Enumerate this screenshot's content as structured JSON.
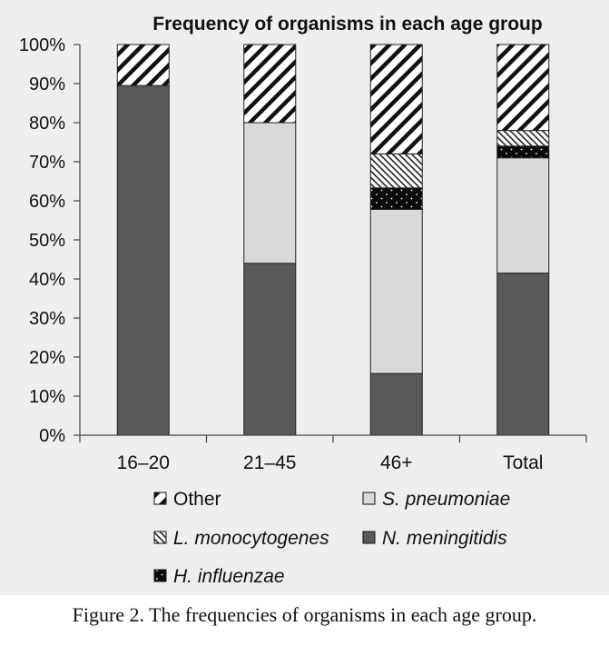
{
  "chart_data": {
    "type": "bar",
    "stacked": true,
    "title": "Frequency of organisms in each age group",
    "categories": [
      "16–20",
      "21–45",
      "46+",
      "Total"
    ],
    "y_ticks": [
      "0%",
      "10%",
      "20%",
      "30%",
      "40%",
      "50%",
      "60%",
      "70%",
      "80%",
      "90%",
      "100%"
    ],
    "ylim": [
      0,
      100
    ],
    "grid": false,
    "legend_position": "bottom",
    "series": [
      {
        "name": "N. meningitidis",
        "italic": true,
        "color": "#595959",
        "pattern": "solid",
        "values": [
          89.5,
          44,
          15.8,
          41.5
        ]
      },
      {
        "name": "S. pneumoniae",
        "italic": true,
        "color": "#d9d9d9",
        "pattern": "solid",
        "values": [
          0,
          36,
          42,
          29.5
        ]
      },
      {
        "name": "H. influenzae",
        "italic": true,
        "color": "#0a0a0a",
        "pattern": "dots",
        "values": [
          0,
          0,
          5.5,
          3
        ]
      },
      {
        "name": "L. monocytogenes",
        "italic": true,
        "color": "#ffffff",
        "pattern": "dense-diagonal",
        "values": [
          0,
          0,
          8.7,
          4
        ]
      },
      {
        "name": "Other",
        "italic": false,
        "color": "#ffffff",
        "pattern": "diagonal",
        "values": [
          10.5,
          20,
          28,
          22
        ]
      }
    ],
    "legend_order": [
      "Other",
      "S. pneumoniae",
      "L. monocytogenes",
      "N. meningitidis",
      "H. influenzae"
    ]
  },
  "caption": "Figure 2. The frequencies of organisms in each age group."
}
